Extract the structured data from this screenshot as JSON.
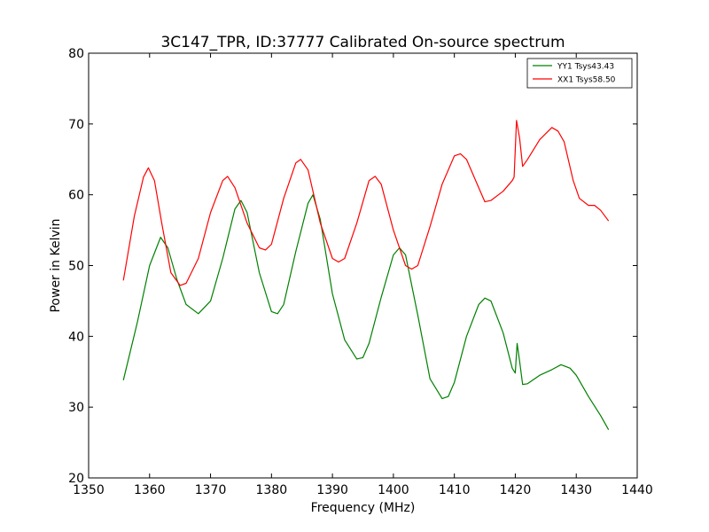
{
  "chart_data": {
    "type": "line",
    "title": "3C147_TPR, ID:37777 Calibrated On-source spectrum",
    "xlabel": "Frequency (MHz)",
    "ylabel": "Power in Kelvin",
    "xlim": [
      1350,
      1440
    ],
    "ylim": [
      20,
      80
    ],
    "x_ticks": [
      "1350",
      "1360",
      "1370",
      "1380",
      "1390",
      "1400",
      "1410",
      "1420",
      "1430",
      "1440"
    ],
    "y_ticks": [
      "20",
      "30",
      "40",
      "50",
      "60",
      "70",
      "80"
    ],
    "grid": false,
    "legend_position": "top-right",
    "series": [
      {
        "name": "YY1 Tsys43.43",
        "color": "#008000",
        "x": [
          1355.7,
          1358.0,
          1360.0,
          1361.8,
          1363.0,
          1364.5,
          1366.0,
          1368.0,
          1370.0,
          1372.0,
          1374.0,
          1375.0,
          1376.0,
          1378.0,
          1380.0,
          1381.0,
          1382.0,
          1384.0,
          1386.0,
          1386.8,
          1388.0,
          1390.0,
          1392.0,
          1394.0,
          1395.0,
          1396.0,
          1398.0,
          1400.0,
          1401.0,
          1402.0,
          1404.0,
          1406.0,
          1408.0,
          1409.0,
          1410.0,
          1412.0,
          1414.0,
          1415.0,
          1416.0,
          1418.0,
          1419.5,
          1420.0,
          1420.3,
          1420.7,
          1421.2,
          1422.0,
          1424.0,
          1426.0,
          1427.5,
          1429.0,
          1430.0,
          1432.0,
          1434.0,
          1435.3
        ],
        "y": [
          33.8,
          42.0,
          50.0,
          54.0,
          52.5,
          48.0,
          44.5,
          43.2,
          45.0,
          51.0,
          58.0,
          59.2,
          57.5,
          49.0,
          43.5,
          43.2,
          44.5,
          52.0,
          58.8,
          60.0,
          56.5,
          46.0,
          39.5,
          36.8,
          37.0,
          39.0,
          45.5,
          51.5,
          52.5,
          51.5,
          43.0,
          34.0,
          31.2,
          31.5,
          33.5,
          40.0,
          44.5,
          45.4,
          45.0,
          40.5,
          35.5,
          34.8,
          39.0,
          36.5,
          33.2,
          33.3,
          34.5,
          35.3,
          36.0,
          35.5,
          34.5,
          31.5,
          28.8,
          26.8
        ]
      },
      {
        "name": "XX1 Tsys58.50",
        "color": "#ff0000",
        "x": [
          1355.7,
          1357.5,
          1359.0,
          1359.8,
          1360.8,
          1362.0,
          1363.5,
          1365.0,
          1366.0,
          1368.0,
          1370.0,
          1372.0,
          1372.8,
          1374.0,
          1376.0,
          1378.0,
          1379.0,
          1380.0,
          1382.0,
          1384.0,
          1384.8,
          1386.0,
          1388.0,
          1390.0,
          1391.0,
          1392.0,
          1394.0,
          1396.0,
          1397.0,
          1398.0,
          1400.0,
          1402.0,
          1403.0,
          1404.0,
          1406.0,
          1408.0,
          1410.0,
          1411.0,
          1412.0,
          1414.0,
          1415.0,
          1416.0,
          1418.0,
          1419.5,
          1419.8,
          1420.2,
          1420.7,
          1421.2,
          1422.0,
          1424.0,
          1426.0,
          1427.0,
          1428.0,
          1429.5,
          1430.5,
          1432.0,
          1433.0,
          1434.0,
          1435.3
        ],
        "y": [
          47.9,
          57.0,
          62.5,
          63.8,
          62.0,
          56.0,
          49.0,
          47.2,
          47.5,
          51.0,
          57.5,
          62.0,
          62.6,
          61.0,
          56.0,
          52.5,
          52.2,
          53.0,
          59.5,
          64.5,
          65.0,
          63.5,
          56.0,
          51.0,
          50.5,
          51.0,
          56.0,
          62.0,
          62.6,
          61.5,
          55.0,
          50.0,
          49.5,
          50.0,
          55.5,
          61.5,
          65.5,
          65.8,
          65.0,
          61.0,
          59.0,
          59.2,
          60.5,
          62.0,
          62.5,
          70.5,
          68.0,
          64.0,
          65.0,
          67.8,
          69.5,
          69.0,
          67.5,
          62.0,
          59.5,
          58.5,
          58.5,
          57.8,
          56.3
        ]
      }
    ]
  }
}
